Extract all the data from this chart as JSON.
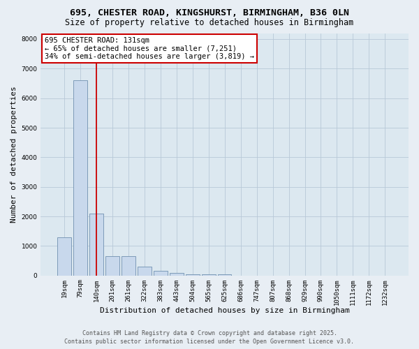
{
  "title_line1": "695, CHESTER ROAD, KINGSHURST, BIRMINGHAM, B36 0LN",
  "title_line2": "Size of property relative to detached houses in Birmingham",
  "xlabel": "Distribution of detached houses by size in Birmingham",
  "ylabel": "Number of detached properties",
  "categories": [
    "19sqm",
    "79sqm",
    "140sqm",
    "201sqm",
    "261sqm",
    "322sqm",
    "383sqm",
    "443sqm",
    "504sqm",
    "565sqm",
    "625sqm",
    "686sqm",
    "747sqm",
    "807sqm",
    "868sqm",
    "929sqm",
    "990sqm",
    "1050sqm",
    "1111sqm",
    "1172sqm",
    "1232sqm"
  ],
  "values": [
    1300,
    6600,
    2100,
    650,
    650,
    300,
    150,
    100,
    50,
    50,
    50,
    0,
    0,
    0,
    0,
    0,
    0,
    0,
    0,
    0,
    0
  ],
  "bar_color": "#c8d8ec",
  "bar_edge_color": "#7090b0",
  "red_line_index": 2,
  "annotation_text_line1": "695 CHESTER ROAD: 131sqm",
  "annotation_text_line2": "← 65% of detached houses are smaller (7,251)",
  "annotation_text_line3": "34% of semi-detached houses are larger (3,819) →",
  "annotation_box_color": "#ffffff",
  "annotation_edge_color": "#cc0000",
  "red_line_color": "#cc0000",
  "ylim": [
    0,
    8200
  ],
  "yticks": [
    0,
    1000,
    2000,
    3000,
    4000,
    5000,
    6000,
    7000,
    8000
  ],
  "grid_color": "#b8c8d8",
  "plot_bg_color": "#dce8f0",
  "fig_bg_color": "#e8eef4",
  "footer_line1": "Contains HM Land Registry data © Crown copyright and database right 2025.",
  "footer_line2": "Contains public sector information licensed under the Open Government Licence v3.0.",
  "title_fontsize": 9.5,
  "subtitle_fontsize": 8.5,
  "tick_fontsize": 6.5,
  "label_fontsize": 8,
  "annot_fontsize": 7.5,
  "footer_fontsize": 6
}
